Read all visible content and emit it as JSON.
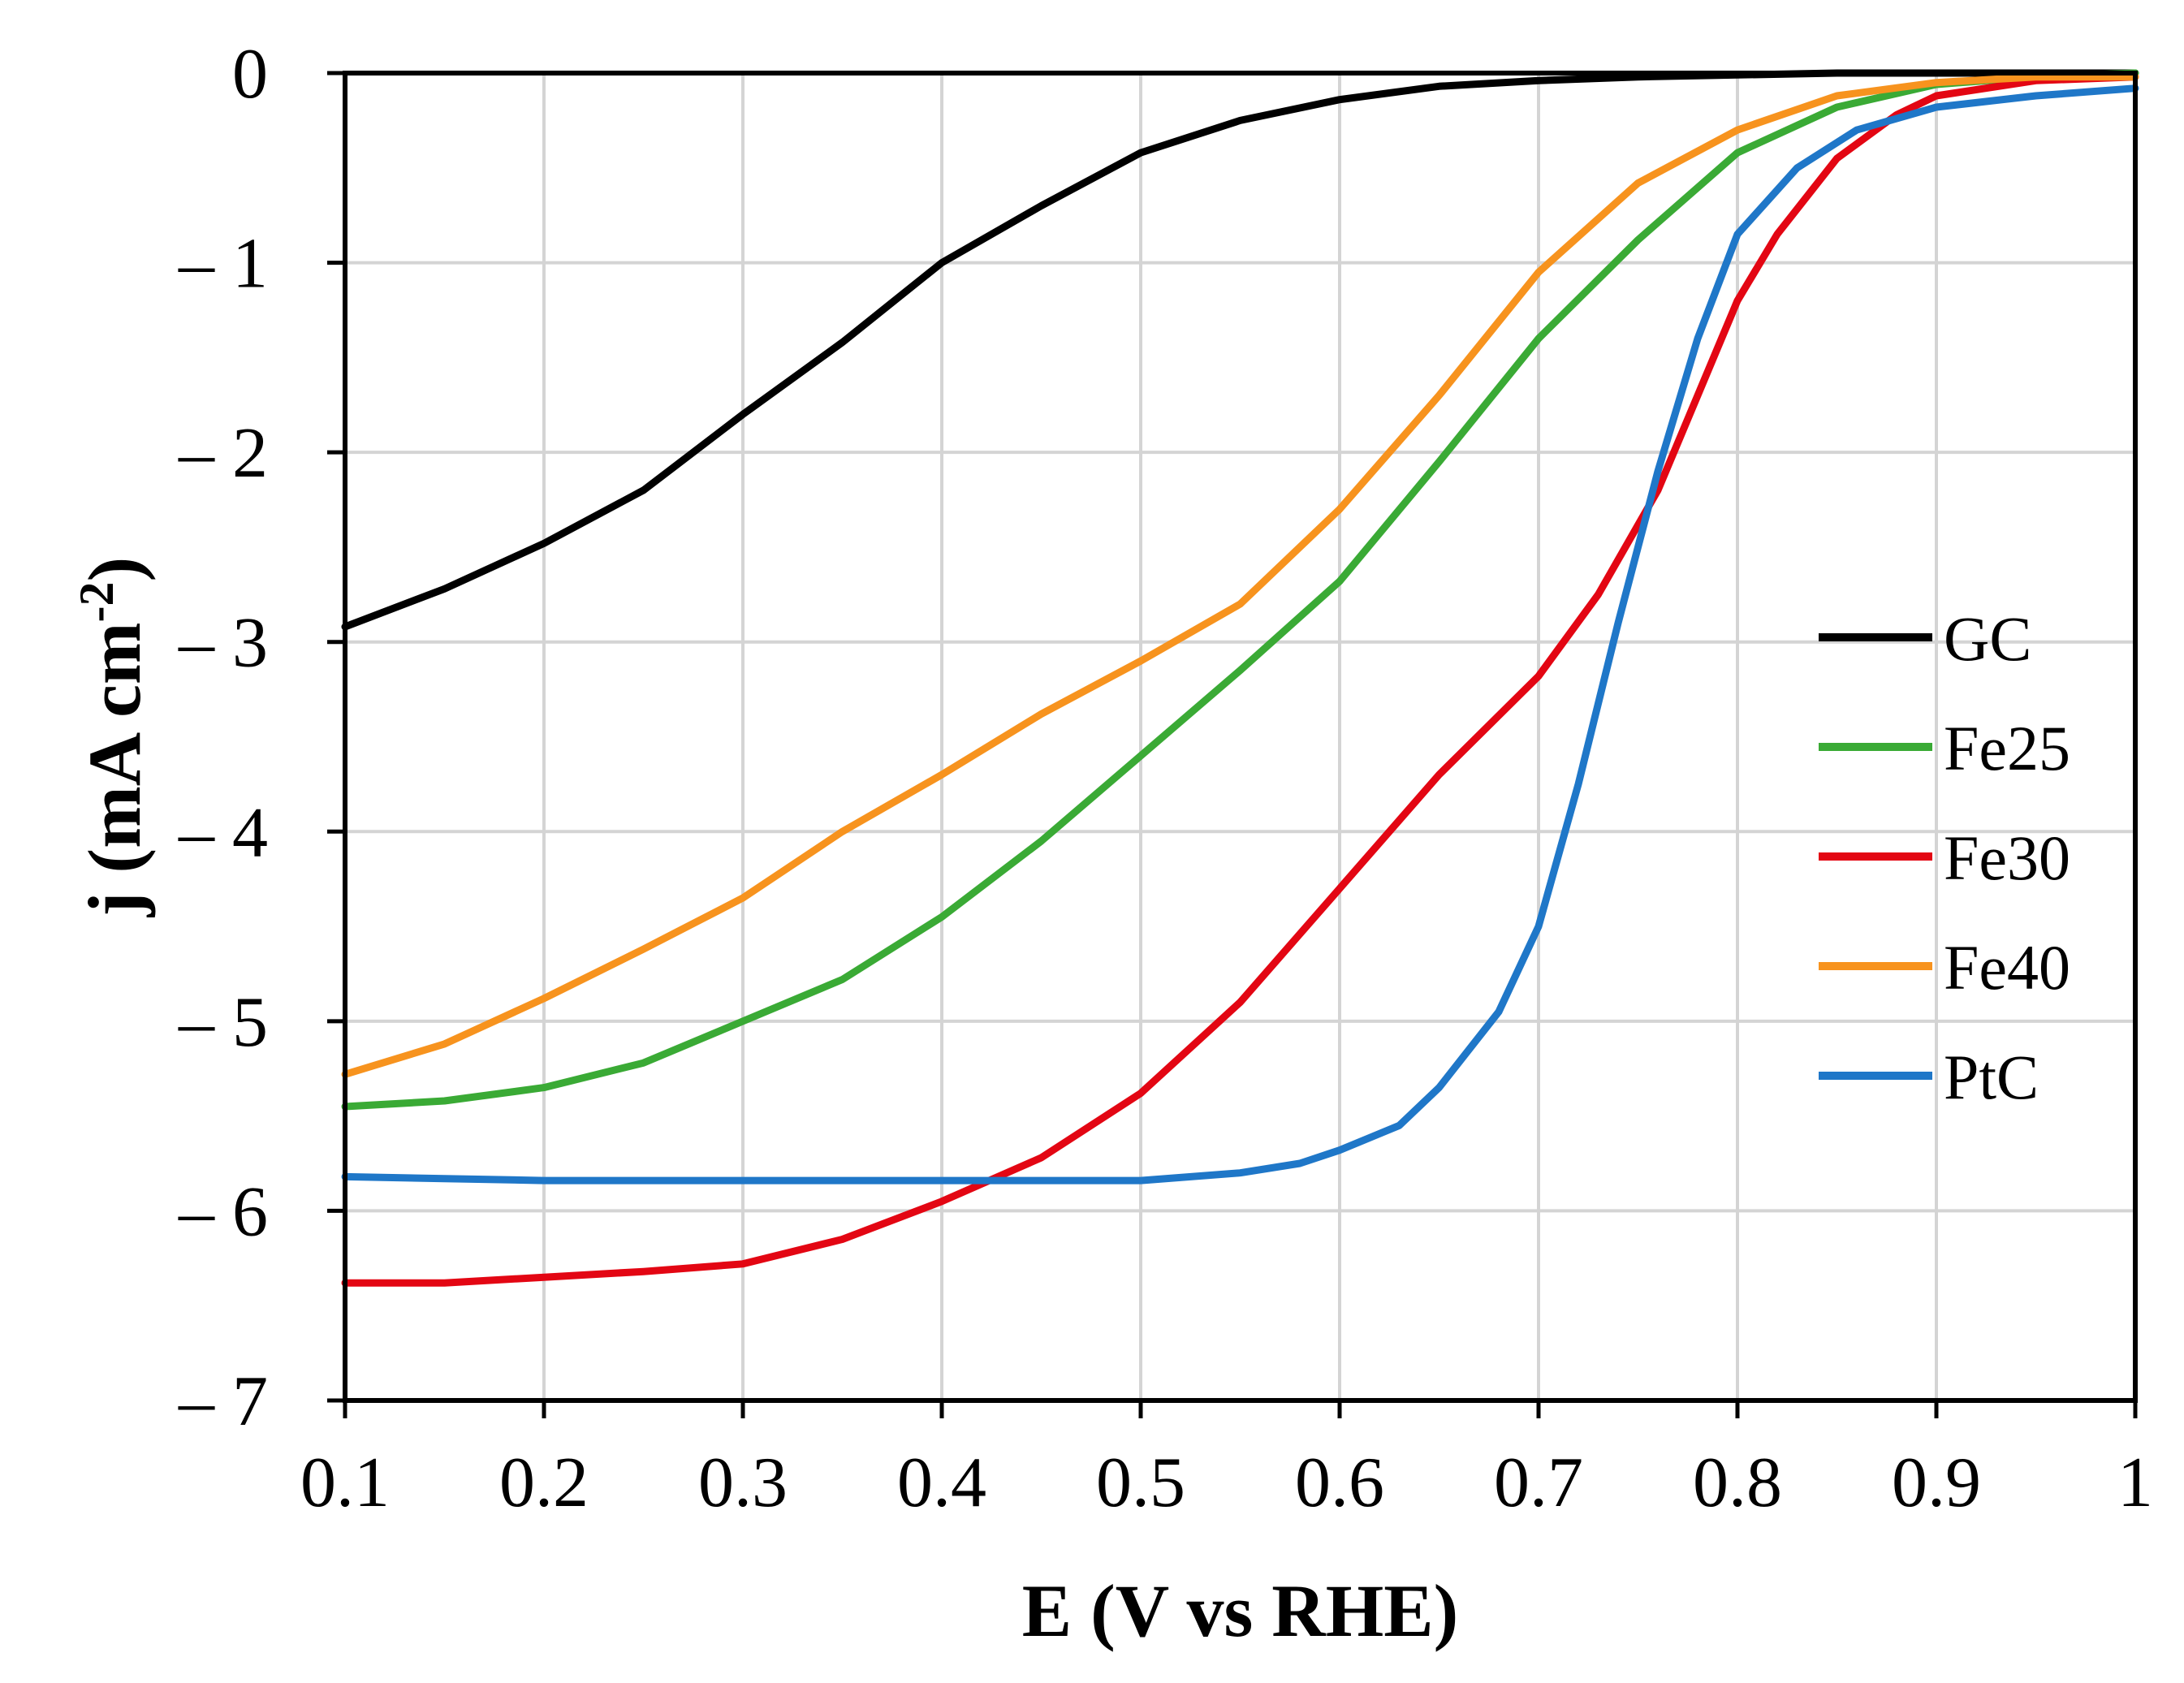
{
  "chart_data": {
    "type": "line",
    "title": "",
    "xlabel": "E (V vs RHE)",
    "ylabel_main": "j (mA cm",
    "ylabel_sup": "-2",
    "ylabel_close": ")",
    "xlim": [
      0.1,
      1.0
    ],
    "ylim": [
      -7,
      0
    ],
    "grid": true,
    "legend_position": "right",
    "x_ticks": [
      0.1,
      0.2,
      0.3,
      0.4,
      0.5,
      0.6,
      0.7,
      0.8,
      0.9,
      1.0
    ],
    "x_tick_labels": [
      "0.1",
      "0.2",
      "0.3",
      "0.4",
      "0.5",
      "0.6",
      "0.7",
      "0.8",
      "0.9",
      "1"
    ],
    "y_ticks": [
      0,
      -1,
      -2,
      -3,
      -4,
      -5,
      -6,
      -7
    ],
    "y_tick_labels": [
      "0",
      "– 1",
      "– 2",
      "– 3",
      "– 4",
      "– 5",
      "– 6",
      "– 7"
    ],
    "series": [
      {
        "name": "GC",
        "color": "#000000",
        "x": [
          0.1,
          0.15,
          0.2,
          0.25,
          0.3,
          0.35,
          0.4,
          0.45,
          0.5,
          0.55,
          0.6,
          0.65,
          0.7,
          0.75,
          0.8,
          0.85,
          0.9,
          0.95,
          1.0
        ],
        "y": [
          -2.92,
          -2.72,
          -2.48,
          -2.2,
          -1.8,
          -1.42,
          -1.0,
          -0.7,
          -0.42,
          -0.25,
          -0.14,
          -0.07,
          -0.04,
          -0.02,
          -0.01,
          0.0,
          0.0,
          0.0,
          0.0
        ]
      },
      {
        "name": "Fe25",
        "color": "#3aaa35",
        "x": [
          0.1,
          0.15,
          0.2,
          0.25,
          0.3,
          0.35,
          0.4,
          0.45,
          0.5,
          0.55,
          0.6,
          0.65,
          0.7,
          0.75,
          0.8,
          0.85,
          0.9,
          0.95,
          1.0
        ],
        "y": [
          -5.45,
          -5.42,
          -5.35,
          -5.22,
          -5.0,
          -4.78,
          -4.45,
          -4.05,
          -3.6,
          -3.15,
          -2.68,
          -2.05,
          -1.4,
          -0.88,
          -0.42,
          -0.18,
          -0.06,
          -0.02,
          0.0
        ]
      },
      {
        "name": "Fe30",
        "color": "#e30613",
        "x": [
          0.1,
          0.15,
          0.2,
          0.25,
          0.3,
          0.35,
          0.4,
          0.45,
          0.5,
          0.55,
          0.6,
          0.65,
          0.7,
          0.73,
          0.76,
          0.78,
          0.8,
          0.82,
          0.85,
          0.88,
          0.9,
          0.95,
          1.0
        ],
        "y": [
          -6.38,
          -6.38,
          -6.35,
          -6.32,
          -6.28,
          -6.15,
          -5.95,
          -5.72,
          -5.38,
          -4.9,
          -4.3,
          -3.7,
          -3.18,
          -2.75,
          -2.2,
          -1.7,
          -1.2,
          -0.85,
          -0.45,
          -0.22,
          -0.12,
          -0.04,
          -0.02
        ]
      },
      {
        "name": "Fe40",
        "color": "#f7931e",
        "x": [
          0.1,
          0.15,
          0.2,
          0.25,
          0.3,
          0.35,
          0.4,
          0.45,
          0.5,
          0.55,
          0.6,
          0.65,
          0.7,
          0.75,
          0.8,
          0.85,
          0.9,
          0.95,
          1.0
        ],
        "y": [
          -5.28,
          -5.12,
          -4.88,
          -4.62,
          -4.35,
          -4.0,
          -3.7,
          -3.38,
          -3.1,
          -2.8,
          -2.3,
          -1.7,
          -1.05,
          -0.58,
          -0.3,
          -0.12,
          -0.05,
          -0.02,
          -0.02
        ]
      },
      {
        "name": "PtC",
        "color": "#1f77c8",
        "x": [
          0.1,
          0.15,
          0.2,
          0.25,
          0.3,
          0.35,
          0.4,
          0.45,
          0.5,
          0.55,
          0.58,
          0.6,
          0.63,
          0.65,
          0.68,
          0.7,
          0.72,
          0.74,
          0.76,
          0.78,
          0.8,
          0.83,
          0.86,
          0.9,
          0.95,
          1.0
        ],
        "y": [
          -5.82,
          -5.83,
          -5.84,
          -5.84,
          -5.84,
          -5.84,
          -5.84,
          -5.84,
          -5.84,
          -5.8,
          -5.75,
          -5.68,
          -5.55,
          -5.35,
          -4.95,
          -4.5,
          -3.75,
          -2.9,
          -2.1,
          -1.4,
          -0.85,
          -0.5,
          -0.3,
          -0.18,
          -0.12,
          -0.08
        ]
      }
    ]
  }
}
